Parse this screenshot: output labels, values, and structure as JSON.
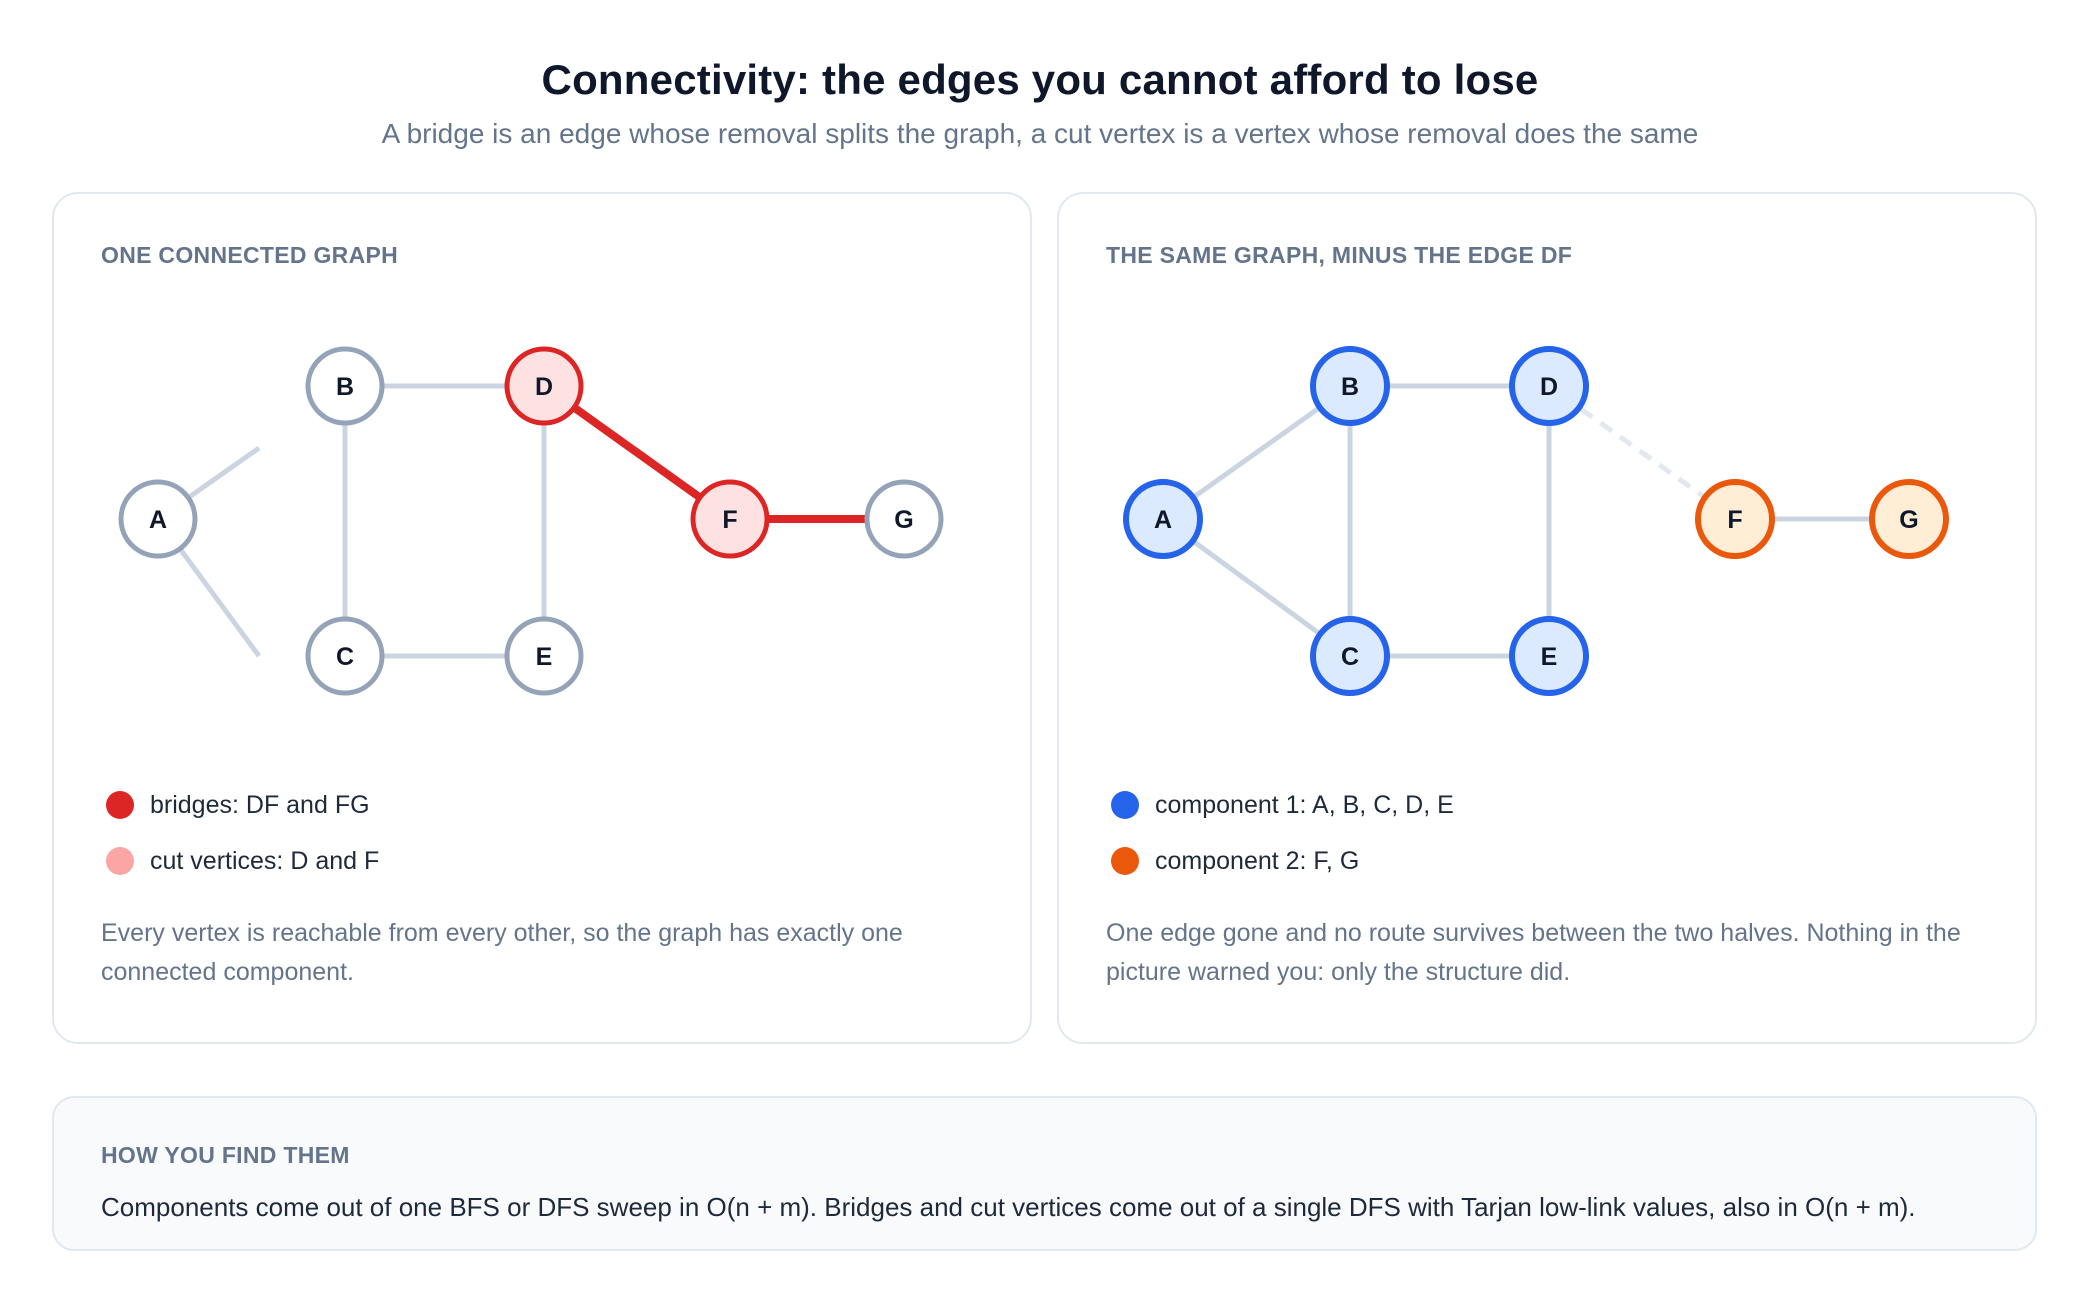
{
  "title": "Connectivity: the edges you cannot afford to lose",
  "subtitle": "A bridge is an edge whose removal splits the graph, a cut vertex is a vertex whose removal does the same",
  "colors": {
    "bridge": "#dc2626",
    "cut_vertex_fill": "#fee2e2",
    "cut_vertex_legend": "#fca5a5",
    "normal_node_stroke": "#94a3b8",
    "edge": "#cbd5e1",
    "component1": "#2563eb",
    "component1_fill": "#dbeafe",
    "component2": "#ea580c",
    "component2_fill": "#ffedd5"
  },
  "left_panel": {
    "heading": "ONE CONNECTED GRAPH",
    "nodes": [
      "A",
      "B",
      "C",
      "D",
      "E",
      "F",
      "G"
    ],
    "edges": [
      [
        "A",
        "B"
      ],
      [
        "A",
        "C"
      ],
      [
        "B",
        "C"
      ],
      [
        "B",
        "D"
      ],
      [
        "C",
        "E"
      ],
      [
        "D",
        "E"
      ],
      [
        "D",
        "F"
      ],
      [
        "F",
        "G"
      ]
    ],
    "bridges": [
      [
        "D",
        "F"
      ],
      [
        "F",
        "G"
      ]
    ],
    "cut_vertices": [
      "D",
      "F"
    ],
    "legend": [
      {
        "label": "bridges: DF and FG",
        "color": "#dc2626"
      },
      {
        "label": "cut vertices: D and F",
        "color": "#fca5a5"
      }
    ],
    "caption": "Every vertex is reachable from every other, so the graph has exactly one connected component."
  },
  "right_panel": {
    "heading": "THE SAME GRAPH, MINUS THE EDGE DF",
    "removed_edge": [
      "D",
      "F"
    ],
    "components": [
      [
        "A",
        "B",
        "C",
        "D",
        "E"
      ],
      [
        "F",
        "G"
      ]
    ],
    "legend": [
      {
        "label": "component 1: A, B, C, D, E",
        "color": "#2563eb"
      },
      {
        "label": "component 2: F, G",
        "color": "#ea580c"
      }
    ],
    "caption": "One edge gone and no route survives between the two halves. Nothing in the picture warned you: only the structure did."
  },
  "footer": {
    "heading": "HOW YOU FIND THEM",
    "text": "Components come out of one BFS or DFS sweep in O(n + m). Bridges and cut vertices come out of a single DFS with Tarjan low-link values, also in O(n + m)."
  }
}
